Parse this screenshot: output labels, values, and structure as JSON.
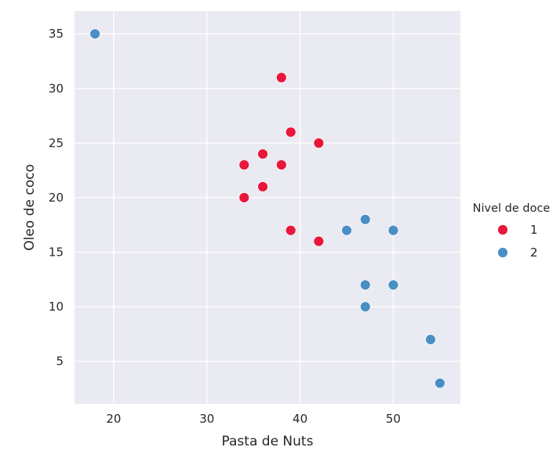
{
  "chart_data": {
    "type": "scatter",
    "xlabel": "Pasta de Nuts",
    "ylabel": "Oleo de coco",
    "xlim": [
      15.8,
      57.2
    ],
    "ylim": [
      1.1,
      37.1
    ],
    "xticks": [
      20,
      30,
      40,
      50
    ],
    "yticks": [
      5,
      10,
      15,
      20,
      25,
      30,
      35
    ],
    "grid": true,
    "background": "#eaeaf2",
    "legend": {
      "title": "Nivel de doce",
      "placement": "right"
    },
    "series": [
      {
        "name": "1",
        "color": "#e8173b",
        "points": [
          {
            "x": 38,
            "y": 31
          },
          {
            "x": 39,
            "y": 26
          },
          {
            "x": 42,
            "y": 25
          },
          {
            "x": 36,
            "y": 24
          },
          {
            "x": 34,
            "y": 23
          },
          {
            "x": 38,
            "y": 23
          },
          {
            "x": 36,
            "y": 21
          },
          {
            "x": 34,
            "y": 20
          },
          {
            "x": 39,
            "y": 17
          },
          {
            "x": 42,
            "y": 16
          }
        ]
      },
      {
        "name": "2",
        "color": "#4a8fc4",
        "points": [
          {
            "x": 18,
            "y": 35
          },
          {
            "x": 47,
            "y": 18
          },
          {
            "x": 45,
            "y": 17
          },
          {
            "x": 50,
            "y": 17
          },
          {
            "x": 47,
            "y": 12
          },
          {
            "x": 50,
            "y": 12
          },
          {
            "x": 47,
            "y": 10
          },
          {
            "x": 54,
            "y": 7
          },
          {
            "x": 55,
            "y": 3
          }
        ]
      }
    ]
  }
}
